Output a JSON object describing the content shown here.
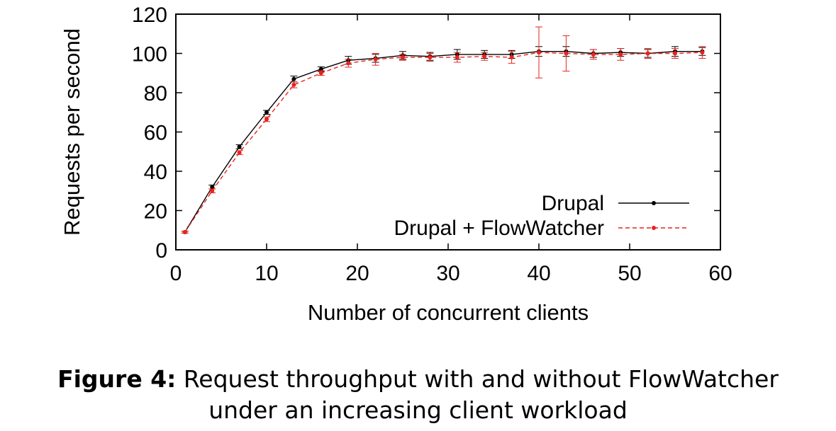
{
  "chart_data": {
    "type": "line",
    "xlabel": "Number of concurrent clients",
    "ylabel": "Requests per second",
    "xlim": [
      0,
      60
    ],
    "ylim": [
      0,
      120
    ],
    "xticks": [
      "0",
      "10",
      "20",
      "30",
      "40",
      "50",
      "60"
    ],
    "yticks": [
      "0",
      "20",
      "40",
      "60",
      "80",
      "100",
      "120"
    ],
    "grid": false,
    "legend_position": "bottom-right",
    "series": [
      {
        "name": "Drupal",
        "color": "#000000",
        "style": "solid",
        "x": [
          1,
          4,
          7,
          10,
          13,
          16,
          19,
          22,
          25,
          28,
          31,
          34,
          37,
          40,
          43,
          46,
          49,
          52,
          55,
          58
        ],
        "y": [
          9,
          32,
          52.5,
          70,
          87,
          92,
          96.5,
          97.5,
          99,
          98.5,
          99.5,
          99.5,
          99.5,
          101,
          101,
          100,
          100.5,
          100,
          101,
          101
        ],
        "err": [
          0.5,
          1,
          1,
          1,
          1.5,
          1.2,
          2,
          2,
          2,
          2,
          2.5,
          2,
          2,
          2.5,
          2.5,
          2,
          2,
          2,
          2.5,
          2
        ]
      },
      {
        "name": "Drupal + FlowWatcher",
        "color": "#e8231f",
        "style": "dashed",
        "x": [
          1,
          4,
          7,
          10,
          13,
          16,
          19,
          22,
          25,
          28,
          31,
          34,
          37,
          40,
          43,
          46,
          49,
          52,
          55,
          58
        ],
        "y": [
          9,
          30,
          49.5,
          66.5,
          84,
          90,
          95,
          97,
          98,
          98,
          98,
          98.5,
          98,
          100.5,
          100,
          99.5,
          99.5,
          100,
          100,
          100.5
        ],
        "err": [
          0.5,
          1,
          1,
          1.2,
          1.5,
          1.2,
          2,
          3,
          1.5,
          2,
          2.5,
          2,
          3,
          13,
          9,
          2.5,
          3,
          2.5,
          2.5,
          3
        ]
      }
    ]
  },
  "caption": {
    "label": "Figure 4:",
    "line1": "Request throughput with and without FlowWatcher",
    "line2": "under an increasing client workload"
  }
}
